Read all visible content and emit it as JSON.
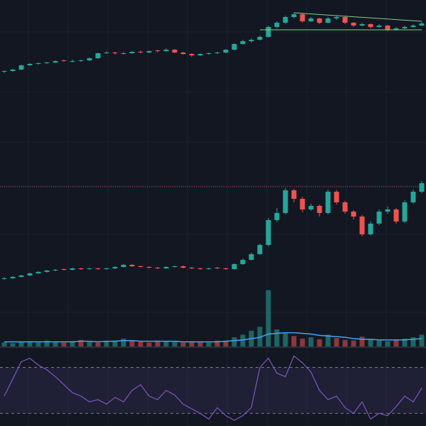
{
  "chart_data": [
    {
      "type": "candlestick",
      "up_color": "#26a69a",
      "down_color": "#ef5350",
      "ylim": [
        0,
        130
      ],
      "trendline_color": "#7fd18b",
      "trendlines": [
        {
          "from": [
            34,
            112
          ],
          "to": [
            49,
            100
          ]
        },
        {
          "from": [
            30,
            88
          ],
          "to": [
            49,
            88
          ]
        }
      ],
      "candles": [
        [
          29,
          31,
          27,
          30
        ],
        [
          30,
          33,
          29,
          32
        ],
        [
          32,
          39,
          31,
          38
        ],
        [
          38,
          41,
          37,
          40
        ],
        [
          40,
          42,
          39,
          41
        ],
        [
          41,
          43,
          40,
          42
        ],
        [
          42,
          45,
          41,
          44
        ],
        [
          45,
          46,
          43,
          44
        ],
        [
          43,
          46,
          42,
          44
        ],
        [
          44,
          46,
          43,
          45
        ],
        [
          45,
          49,
          44,
          48
        ],
        [
          48,
          56,
          47,
          55
        ],
        [
          55,
          58,
          54,
          56
        ],
        [
          56,
          57,
          53,
          55
        ],
        [
          54,
          57,
          53,
          55
        ],
        [
          55,
          58,
          54,
          57
        ],
        [
          57,
          59,
          55,
          56
        ],
        [
          56,
          59,
          55,
          58
        ],
        [
          59,
          60,
          56,
          58
        ],
        [
          58,
          62,
          57,
          60
        ],
        [
          60,
          61,
          55,
          56
        ],
        [
          56,
          57,
          53,
          54
        ],
        [
          54,
          55,
          50,
          52
        ],
        [
          52,
          55,
          51,
          54
        ],
        [
          54,
          56,
          53,
          55
        ],
        [
          55,
          57,
          54,
          56
        ],
        [
          56,
          61,
          55,
          60
        ],
        [
          60,
          69,
          59,
          68
        ],
        [
          68,
          74,
          67,
          72
        ],
        [
          72,
          76,
          70,
          74
        ],
        [
          74,
          80,
          73,
          78
        ],
        [
          78,
          94,
          77,
          92
        ],
        [
          92,
          100,
          90,
          98
        ],
        [
          98,
          108,
          96,
          106
        ],
        [
          106,
          112,
          104,
          110
        ],
        [
          110,
          111,
          98,
          100
        ],
        [
          100,
          106,
          99,
          104
        ],
        [
          104,
          105,
          96,
          98
        ],
        [
          98,
          106,
          97,
          104
        ],
        [
          104,
          108,
          102,
          106
        ],
        [
          106,
          107,
          96,
          98
        ],
        [
          98,
          99,
          92,
          94
        ],
        [
          94,
          98,
          93,
          96
        ],
        [
          96,
          97,
          90,
          92
        ],
        [
          92,
          96,
          91,
          94
        ],
        [
          94,
          95,
          86,
          88
        ],
        [
          88,
          92,
          87,
          90
        ],
        [
          90,
          94,
          89,
          92
        ],
        [
          92,
          96,
          91,
          94
        ],
        [
          94,
          99,
          93,
          97
        ]
      ]
    },
    {
      "type": "candlestick",
      "up_color": "#26a69a",
      "down_color": "#ef5350",
      "ylim": [
        0,
        275
      ],
      "reference_line": 142,
      "reference_color": "#ef5350",
      "candles": [
        [
          12,
          15,
          11,
          13
        ],
        [
          13,
          16,
          12,
          15
        ],
        [
          15,
          18,
          14,
          17
        ],
        [
          17,
          21,
          16,
          20
        ],
        [
          20,
          23,
          19,
          22
        ],
        [
          22,
          25,
          21,
          24
        ],
        [
          24,
          26,
          23,
          25
        ],
        [
          26,
          27,
          24,
          25
        ],
        [
          25,
          28,
          24,
          27
        ],
        [
          27,
          28,
          25,
          26
        ],
        [
          26,
          28,
          25,
          27
        ],
        [
          27,
          28,
          25,
          26
        ],
        [
          26,
          28,
          25,
          27
        ],
        [
          27,
          30,
          26,
          29
        ],
        [
          29,
          33,
          28,
          32
        ],
        [
          32,
          33,
          29,
          30
        ],
        [
          30,
          31,
          28,
          29
        ],
        [
          29,
          30,
          27,
          28
        ],
        [
          28,
          29,
          26,
          27
        ],
        [
          27,
          30,
          26,
          29
        ],
        [
          29,
          31,
          28,
          30
        ],
        [
          30,
          31,
          27,
          28
        ],
        [
          28,
          29,
          26,
          27
        ],
        [
          27,
          28,
          25,
          26
        ],
        [
          26,
          28,
          25,
          27
        ],
        [
          28,
          29,
          26,
          27
        ],
        [
          27,
          28,
          25,
          26
        ],
        [
          26,
          34,
          25,
          33
        ],
        [
          33,
          41,
          32,
          39
        ],
        [
          39,
          49,
          38,
          47
        ],
        [
          47,
          62,
          46,
          60
        ],
        [
          60,
          98,
          58,
          95
        ],
        [
          95,
          112,
          92,
          105
        ],
        [
          105,
          140,
          103,
          137
        ],
        [
          137,
          139,
          120,
          125
        ],
        [
          125,
          128,
          106,
          110
        ],
        [
          110,
          118,
          108,
          115
        ],
        [
          115,
          117,
          100,
          105
        ],
        [
          105,
          138,
          103,
          135
        ],
        [
          135,
          137,
          117,
          120
        ],
        [
          120,
          122,
          104,
          107
        ],
        [
          107,
          109,
          96,
          100
        ],
        [
          100,
          102,
          72,
          75
        ],
        [
          75,
          93,
          73,
          90
        ],
        [
          90,
          110,
          88,
          107
        ],
        [
          107,
          114,
          104,
          110
        ],
        [
          110,
          112,
          90,
          93
        ],
        [
          93,
          123,
          91,
          120
        ],
        [
          120,
          138,
          118,
          135
        ],
        [
          135,
          150,
          133,
          147
        ]
      ]
    },
    {
      "type": "bar",
      "up_color": "#26a69a",
      "down_color": "#ef5350",
      "ma_color": "#42a5f5",
      "ylim": [
        0,
        90
      ],
      "values": [
        6,
        5,
        7,
        8,
        6,
        9,
        7,
        6,
        8,
        10,
        7,
        6,
        8,
        9,
        12,
        8,
        7,
        6,
        9,
        8,
        7,
        6,
        8,
        7,
        6,
        9,
        8,
        14,
        18,
        24,
        30,
        86,
        26,
        20,
        16,
        12,
        14,
        11,
        18,
        13,
        10,
        9,
        15,
        11,
        9,
        8,
        10,
        12,
        14,
        18
      ],
      "ma": [
        7,
        7,
        7,
        7,
        7,
        7,
        7,
        7,
        7,
        8,
        8,
        7,
        8,
        8,
        9,
        9,
        8,
        8,
        8,
        8,
        8,
        7,
        7,
        7,
        7,
        7,
        8,
        9,
        10,
        12,
        14,
        19,
        20,
        21,
        21,
        20,
        19,
        17,
        16,
        15,
        14,
        12,
        11,
        11,
        10,
        10,
        10,
        10,
        11,
        12
      ]
    },
    {
      "type": "line",
      "color": "#7e57c2",
      "band_fill": "rgba(126,87,194,0.12)",
      "ylim": [
        19,
        87
      ],
      "bands": [
        30,
        70
      ],
      "values": [
        45,
        60,
        75,
        78,
        72,
        68,
        62,
        55,
        48,
        45,
        40,
        42,
        38,
        44,
        40,
        50,
        55,
        45,
        42,
        50,
        46,
        38,
        34,
        30,
        25,
        35,
        28,
        24,
        28,
        35,
        70,
        78,
        65,
        62,
        80,
        74,
        66,
        50,
        42,
        45,
        35,
        30,
        40,
        25,
        30,
        28,
        36,
        45,
        40,
        52
      ]
    }
  ]
}
